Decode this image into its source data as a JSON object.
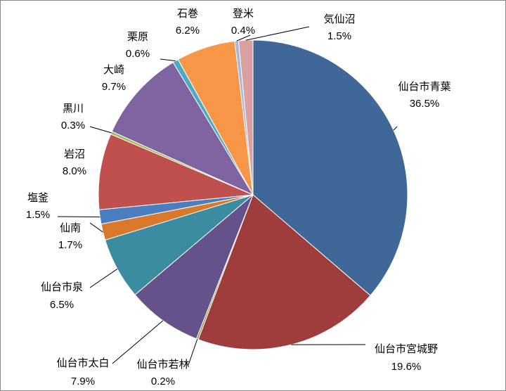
{
  "chart_data": {
    "type": "pie",
    "categories": [
      "仙台市青葉",
      "仙台市宮城野",
      "仙台市若林",
      "仙台市太白",
      "仙台市泉",
      "仙南",
      "塩釜",
      "岩沼",
      "黒川",
      "大崎",
      "栗原",
      "石巻",
      "登米",
      "気仙沼"
    ],
    "values": [
      36.5,
      19.6,
      0.2,
      7.9,
      6.5,
      1.7,
      1.5,
      8.0,
      0.3,
      9.7,
      0.6,
      6.2,
      0.4,
      1.5
    ],
    "value_labels": [
      "36.5%",
      "19.6%",
      "0.2%",
      "7.9%",
      "6.5%",
      "1.7%",
      "1.5%",
      "8.0%",
      "0.3%",
      "9.7%",
      "0.6%",
      "6.2%",
      "0.4%",
      "1.5%"
    ],
    "colors": [
      "#3f6797",
      "#9e3d3b",
      "#7f9a48",
      "#65528a",
      "#3b8ba1",
      "#d9772b",
      "#4a7ec0",
      "#c0504d",
      "#9bbb59",
      "#8064a2",
      "#4bacc6",
      "#f79646",
      "#a5b8d8",
      "#d8a0a0"
    ]
  }
}
